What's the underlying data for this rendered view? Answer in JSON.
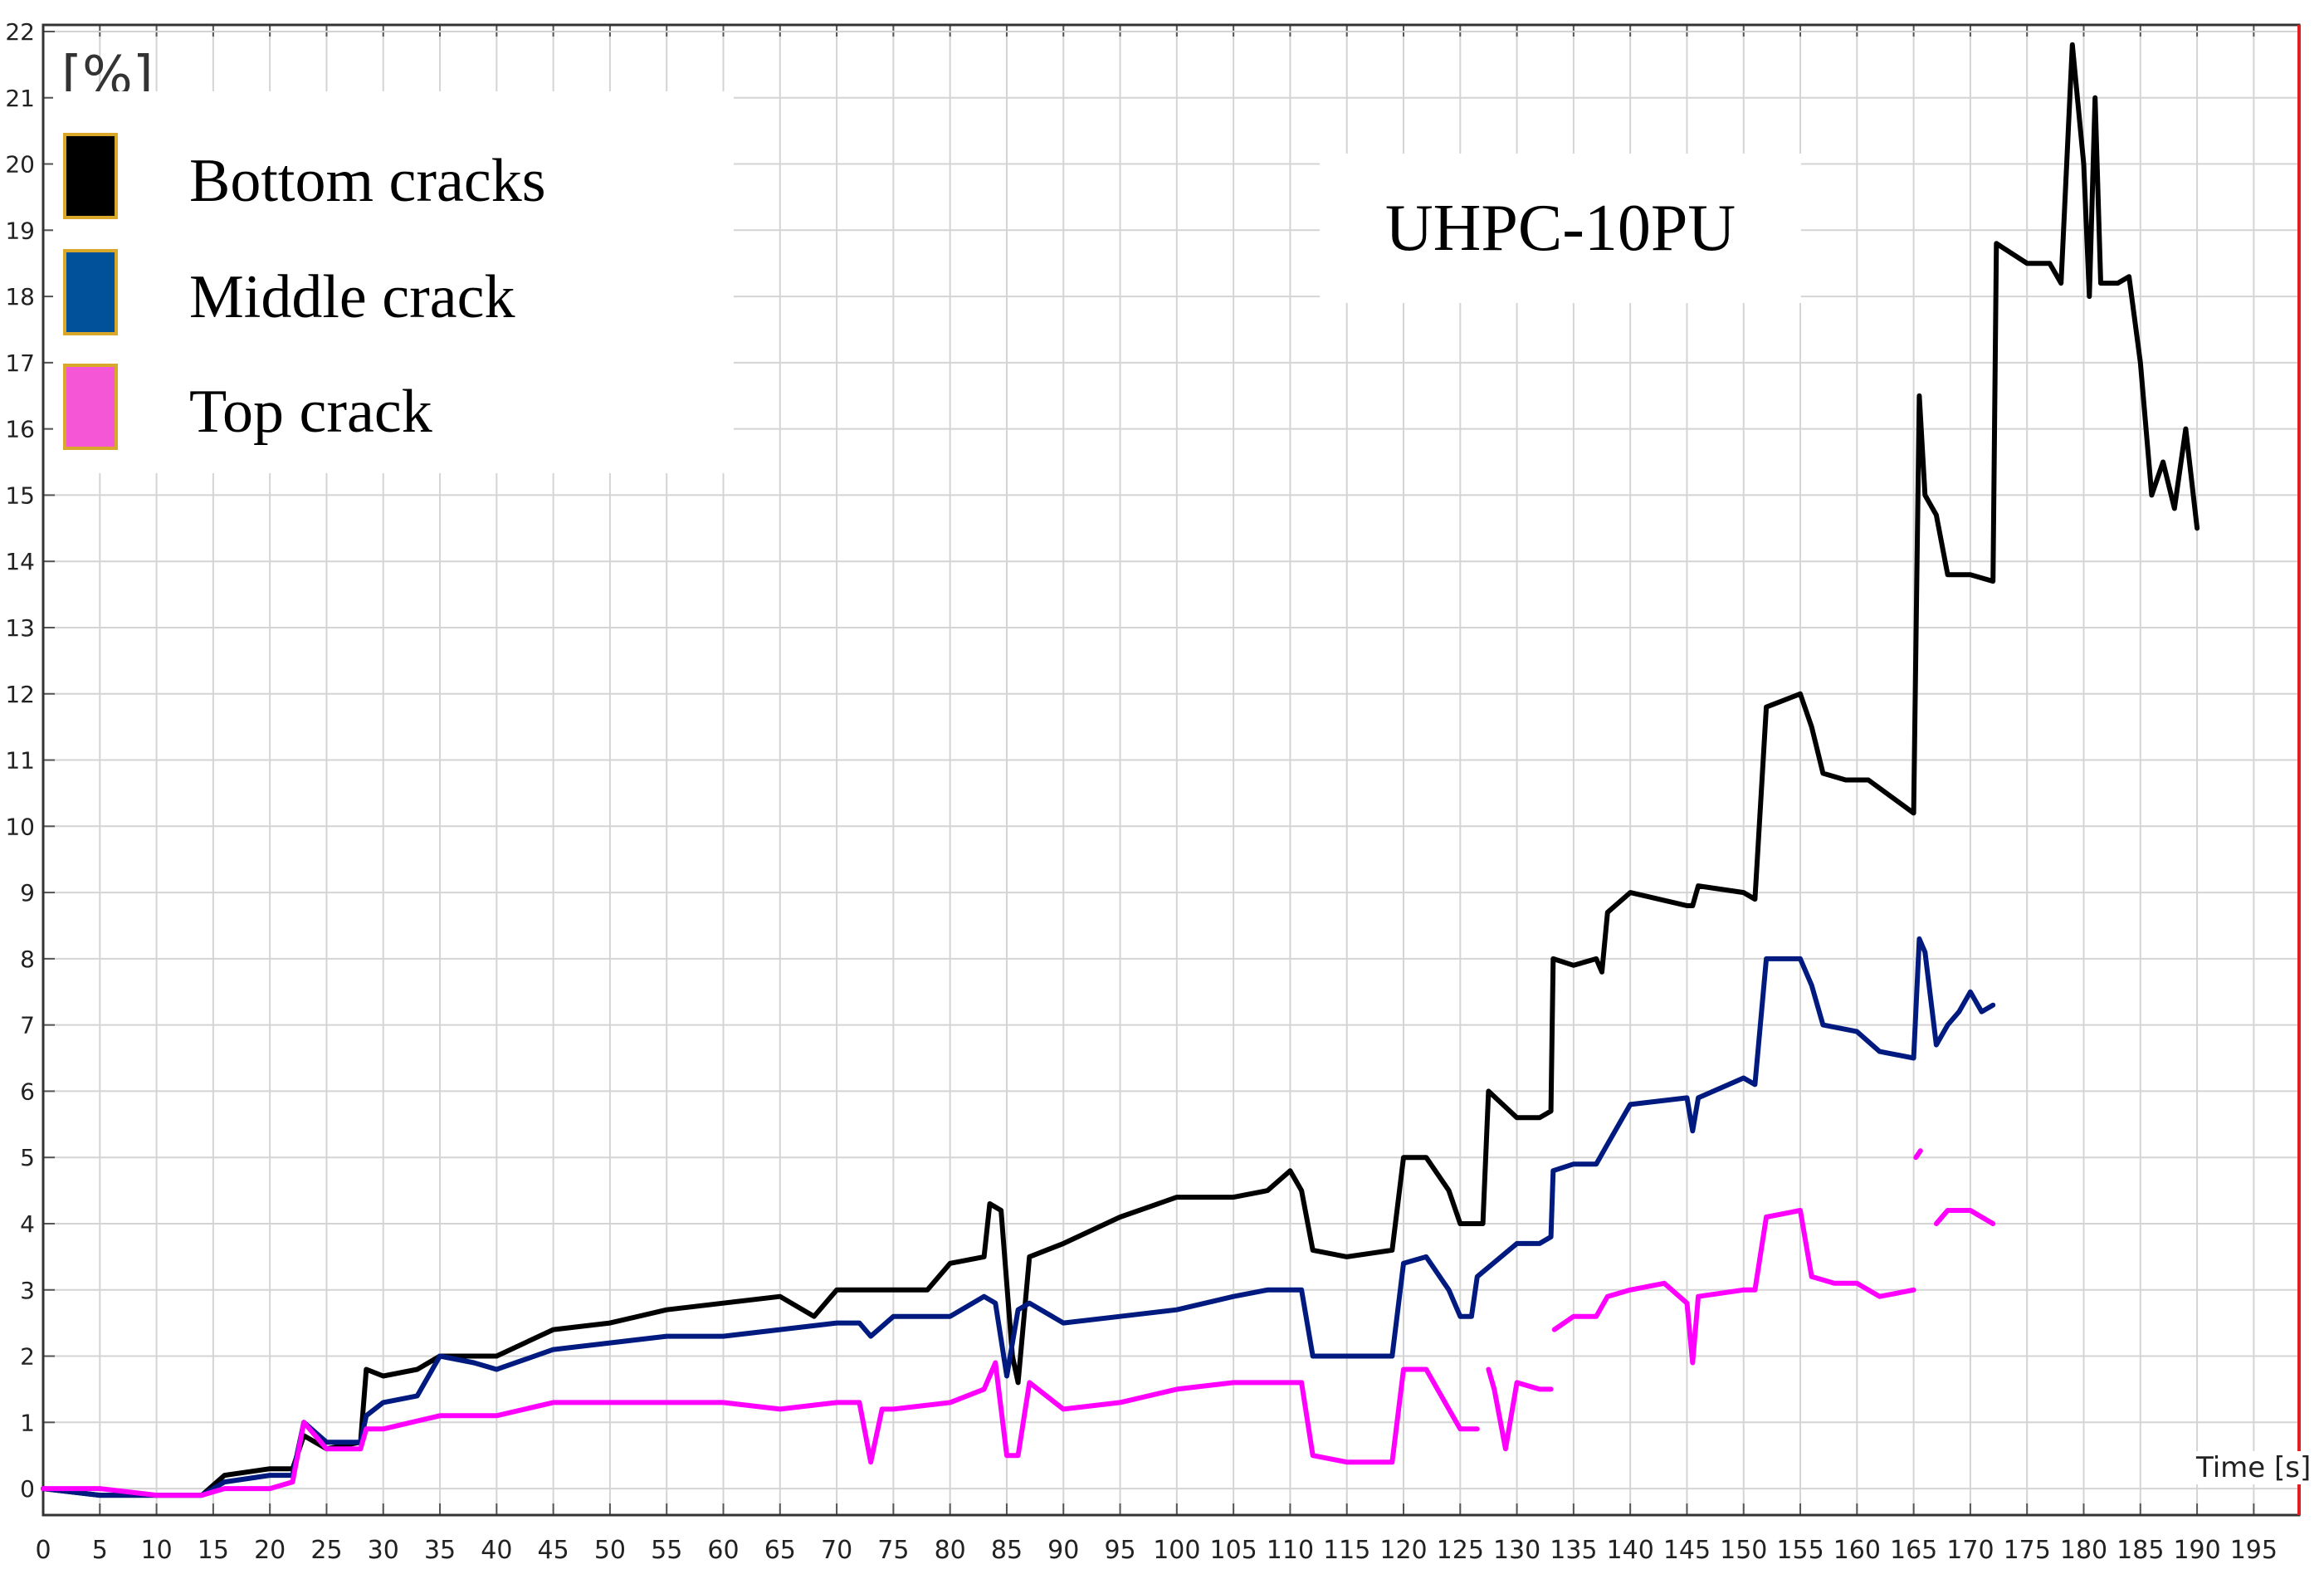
{
  "chart_data": {
    "type": "line",
    "title": "UHPC-10PU",
    "xlabel": "Time [s]",
    "ylabel": "[%]",
    "xlim": [
      0,
      199
    ],
    "ylim": [
      -0.4,
      22.1
    ],
    "xticks": [
      0,
      5,
      10,
      15,
      20,
      25,
      30,
      35,
      40,
      45,
      50,
      55,
      60,
      65,
      70,
      75,
      80,
      85,
      90,
      95,
      100,
      105,
      110,
      115,
      120,
      125,
      130,
      135,
      140,
      145,
      150,
      155,
      160,
      165,
      170,
      175,
      180,
      185,
      190,
      195
    ],
    "yticks": [
      0,
      1,
      2,
      3,
      4,
      5,
      6,
      7,
      8,
      9,
      10,
      11,
      12,
      13,
      14,
      15,
      16,
      17,
      18,
      19,
      20,
      21,
      22
    ],
    "grid": true,
    "legend_position": "top-left",
    "series": [
      {
        "name": "Bottom cracks",
        "color": "#000000",
        "points": [
          [
            0,
            0
          ],
          [
            5,
            -0.1
          ],
          [
            10,
            -0.1
          ],
          [
            14,
            -0.1
          ],
          [
            16,
            0.2
          ],
          [
            20,
            0.3
          ],
          [
            22,
            0.3
          ],
          [
            23,
            0.8
          ],
          [
            25,
            0.6
          ],
          [
            28,
            0.7
          ],
          [
            28.5,
            1.8
          ],
          [
            30,
            1.7
          ],
          [
            33,
            1.8
          ],
          [
            35,
            2.0
          ],
          [
            40,
            2.0
          ],
          [
            45,
            2.4
          ],
          [
            50,
            2.5
          ],
          [
            55,
            2.7
          ],
          [
            60,
            2.8
          ],
          [
            65,
            2.9
          ],
          [
            68,
            2.6
          ],
          [
            70,
            3.0
          ],
          [
            75,
            3.0
          ],
          [
            78,
            3.0
          ],
          [
            80,
            3.4
          ],
          [
            83,
            3.5
          ],
          [
            83.5,
            4.3
          ],
          [
            84.5,
            4.2
          ],
          [
            85.5,
            2.0
          ],
          [
            86,
            1.6
          ],
          [
            87,
            3.5
          ],
          [
            90,
            3.7
          ],
          [
            95,
            4.1
          ],
          [
            100,
            4.4
          ],
          [
            105,
            4.4
          ],
          [
            108,
            4.5
          ],
          [
            110,
            4.8
          ],
          [
            111,
            4.5
          ],
          [
            112,
            3.6
          ],
          [
            115,
            3.5
          ],
          [
            119,
            3.6
          ],
          [
            120,
            5.0
          ],
          [
            122,
            5.0
          ],
          [
            124,
            4.5
          ],
          [
            125,
            4.0
          ],
          [
            127,
            4.0
          ],
          [
            127.5,
            6.0
          ],
          [
            130,
            5.6
          ],
          [
            132,
            5.6
          ],
          [
            133,
            5.7
          ],
          [
            133.2,
            8.0
          ],
          [
            135,
            7.9
          ],
          [
            137,
            8.0
          ],
          [
            137.5,
            7.8
          ],
          [
            138,
            8.7
          ],
          [
            140,
            9.0
          ],
          [
            145,
            8.8
          ],
          [
            145.5,
            8.8
          ],
          [
            146,
            9.1
          ],
          [
            150,
            9.0
          ],
          [
            151,
            8.9
          ],
          [
            152,
            11.8
          ],
          [
            155,
            12.0
          ],
          [
            156,
            11.5
          ],
          [
            157,
            10.8
          ],
          [
            159,
            10.7
          ],
          [
            161,
            10.7
          ],
          [
            165,
            10.2
          ],
          [
            165.5,
            16.5
          ],
          [
            166,
            15.0
          ],
          [
            167,
            14.7
          ],
          [
            168,
            13.8
          ],
          [
            170,
            13.8
          ],
          [
            172,
            13.7
          ],
          [
            172.3,
            18.8
          ],
          [
            175,
            18.5
          ],
          [
            177,
            18.5
          ],
          [
            178,
            18.2
          ],
          [
            179,
            21.8
          ],
          [
            180,
            20.0
          ],
          [
            180.5,
            18.0
          ],
          [
            181,
            21.0
          ],
          [
            181.5,
            18.2
          ],
          [
            183,
            18.2
          ],
          [
            184,
            18.3
          ],
          [
            185,
            17.0
          ],
          [
            186,
            15.0
          ],
          [
            187,
            15.5
          ],
          [
            188,
            14.8
          ],
          [
            189,
            16.0
          ],
          [
            190,
            14.5
          ]
        ]
      },
      {
        "name": "Middle crack",
        "color": "#001a80",
        "points": [
          [
            0,
            0
          ],
          [
            5,
            -0.1
          ],
          [
            10,
            -0.1
          ],
          [
            14,
            -0.1
          ],
          [
            16,
            0.1
          ],
          [
            20,
            0.2
          ],
          [
            22,
            0.2
          ],
          [
            23,
            1.0
          ],
          [
            25,
            0.7
          ],
          [
            28,
            0.7
          ],
          [
            28.5,
            1.1
          ],
          [
            30,
            1.3
          ],
          [
            33,
            1.4
          ],
          [
            35,
            2.0
          ],
          [
            38,
            1.9
          ],
          [
            40,
            1.8
          ],
          [
            45,
            2.1
          ],
          [
            50,
            2.2
          ],
          [
            55,
            2.3
          ],
          [
            60,
            2.3
          ],
          [
            65,
            2.4
          ],
          [
            70,
            2.5
          ],
          [
            72,
            2.5
          ],
          [
            73,
            2.3
          ],
          [
            75,
            2.6
          ],
          [
            80,
            2.6
          ],
          [
            83,
            2.9
          ],
          [
            84,
            2.8
          ],
          [
            85,
            1.7
          ],
          [
            86,
            2.7
          ],
          [
            87,
            2.8
          ],
          [
            90,
            2.5
          ],
          [
            95,
            2.6
          ],
          [
            100,
            2.7
          ],
          [
            105,
            2.9
          ],
          [
            108,
            3.0
          ],
          [
            110,
            3.0
          ],
          [
            111,
            3.0
          ],
          [
            112,
            2.0
          ],
          [
            115,
            2.0
          ],
          [
            119,
            2.0
          ],
          [
            120,
            3.4
          ],
          [
            122,
            3.5
          ],
          [
            124,
            3.0
          ],
          [
            125,
            2.6
          ],
          [
            126,
            2.6
          ],
          [
            126.5,
            3.2
          ],
          [
            130,
            3.7
          ],
          [
            132,
            3.7
          ],
          [
            133,
            3.8
          ],
          [
            133.2,
            4.8
          ],
          [
            135,
            4.9
          ],
          [
            137,
            4.9
          ],
          [
            138,
            5.2
          ],
          [
            140,
            5.8
          ],
          [
            145,
            5.9
          ],
          [
            145.5,
            5.4
          ],
          [
            146,
            5.9
          ],
          [
            150,
            6.2
          ],
          [
            151,
            6.1
          ],
          [
            152,
            8.0
          ],
          [
            155,
            8.0
          ],
          [
            156,
            7.6
          ],
          [
            157,
            7.0
          ],
          [
            160,
            6.9
          ],
          [
            162,
            6.6
          ],
          [
            165,
            6.5
          ],
          [
            165.5,
            8.3
          ],
          [
            166,
            8.1
          ],
          [
            167,
            6.7
          ],
          [
            168,
            7.0
          ],
          [
            169,
            7.2
          ],
          [
            170,
            7.5
          ],
          [
            171,
            7.2
          ],
          [
            172,
            7.3
          ]
        ]
      },
      {
        "name": "Top crack",
        "color": "#ff00ff",
        "points": [
          [
            0,
            0
          ],
          [
            5,
            0
          ],
          [
            10,
            -0.1
          ],
          [
            14,
            -0.1
          ],
          [
            16,
            0
          ],
          [
            20,
            0
          ],
          [
            22,
            0.1
          ],
          [
            23,
            1.0
          ],
          [
            25,
            0.6
          ],
          [
            28,
            0.6
          ],
          [
            28.5,
            0.9
          ],
          [
            30,
            0.9
          ],
          [
            35,
            1.1
          ],
          [
            40,
            1.1
          ],
          [
            45,
            1.3
          ],
          [
            50,
            1.3
          ],
          [
            55,
            1.3
          ],
          [
            60,
            1.3
          ],
          [
            65,
            1.2
          ],
          [
            70,
            1.3
          ],
          [
            72,
            1.3
          ],
          [
            73,
            0.4
          ],
          [
            74,
            1.2
          ],
          [
            75,
            1.2
          ],
          [
            80,
            1.3
          ],
          [
            83,
            1.5
          ],
          [
            84,
            1.9
          ],
          [
            85,
            0.5
          ],
          [
            86,
            0.5
          ],
          [
            87,
            1.6
          ],
          [
            90,
            1.2
          ],
          [
            95,
            1.3
          ],
          [
            100,
            1.5
          ],
          [
            105,
            1.6
          ],
          [
            108,
            1.6
          ],
          [
            110,
            1.6
          ],
          [
            111,
            1.6
          ],
          [
            112,
            0.5
          ],
          [
            115,
            0.4
          ],
          [
            119,
            0.4
          ],
          [
            120,
            1.8
          ],
          [
            122,
            1.8
          ],
          [
            124,
            1.2
          ],
          [
            125,
            0.9
          ],
          [
            126.5,
            0.9
          ]
        ],
        "segments_extra": [
          [
            [
              127.5,
              1.8
            ],
            [
              128,
              1.5
            ],
            [
              129,
              0.6
            ],
            [
              130,
              1.6
            ],
            [
              132,
              1.5
            ],
            [
              133,
              1.5
            ]
          ],
          [
            [
              133.3,
              2.4
            ],
            [
              135,
              2.6
            ],
            [
              137,
              2.6
            ],
            [
              138,
              2.9
            ],
            [
              140,
              3.0
            ],
            [
              143,
              3.1
            ],
            [
              145,
              2.8
            ],
            [
              145.5,
              1.9
            ],
            [
              146,
              2.9
            ],
            [
              150,
              3.0
            ],
            [
              151,
              3.0
            ],
            [
              152,
              4.1
            ],
            [
              155,
              4.2
            ],
            [
              156,
              3.2
            ],
            [
              158,
              3.1
            ],
            [
              160,
              3.1
            ],
            [
              162,
              2.9
            ],
            [
              165,
              3.0
            ]
          ],
          [
            [
              165.2,
              5.0
            ],
            [
              165.6,
              5.1
            ]
          ],
          [
            [
              167,
              4.0
            ],
            [
              168,
              4.2
            ],
            [
              170,
              4.2
            ],
            [
              172,
              4.0
            ]
          ]
        ]
      }
    ]
  },
  "legend": {
    "unit_label": "[%]",
    "items": [
      {
        "label": "Bottom cracks",
        "color": "#000000"
      },
      {
        "label": "Middle crack",
        "color": "#00519a"
      },
      {
        "label": "Top crack",
        "color": "#f556d6"
      }
    ]
  },
  "annotation": "UHPC-10PU",
  "time_axis_label": "Time [s]"
}
